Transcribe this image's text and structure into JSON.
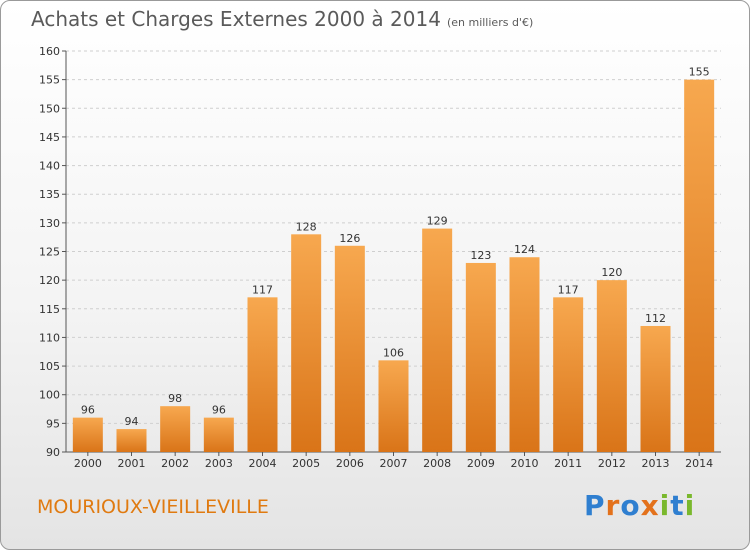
{
  "title": "Achats et Charges Externes 2000 à 2014",
  "subtitle": "(en milliers d'€)",
  "place": "MOURIOUX-VIEILLEVILLE",
  "logo": "Proxiti",
  "colors": {
    "bar_light": "#f7a84f",
    "bar_dark": "#d97418",
    "place_text": "#e07a10",
    "logo_letters": [
      "#2f7fd0",
      "#e3711b",
      "#2f7fd0",
      "#e3711b",
      "#7ab82d",
      "#2f7fd0",
      "#7ab82d"
    ]
  },
  "chart_data": {
    "type": "bar",
    "categories": [
      "2000",
      "2001",
      "2002",
      "2003",
      "2004",
      "2005",
      "2006",
      "2007",
      "2008",
      "2009",
      "2010",
      "2011",
      "2012",
      "2013",
      "2014"
    ],
    "values": [
      96,
      94,
      98,
      96,
      117,
      128,
      126,
      106,
      129,
      123,
      124,
      117,
      120,
      112,
      155
    ],
    "data_labels": [
      "96",
      "94",
      "98",
      "96",
      "117",
      "128",
      "126",
      "106",
      "129",
      "123",
      "124",
      "117",
      "120",
      "112",
      "155"
    ],
    "yticks": [
      90,
      95,
      100,
      105,
      110,
      115,
      120,
      125,
      130,
      135,
      140,
      145,
      150,
      155,
      160
    ],
    "ylim": [
      90,
      160
    ],
    "grid": true,
    "xlabel": "",
    "ylabel": ""
  }
}
